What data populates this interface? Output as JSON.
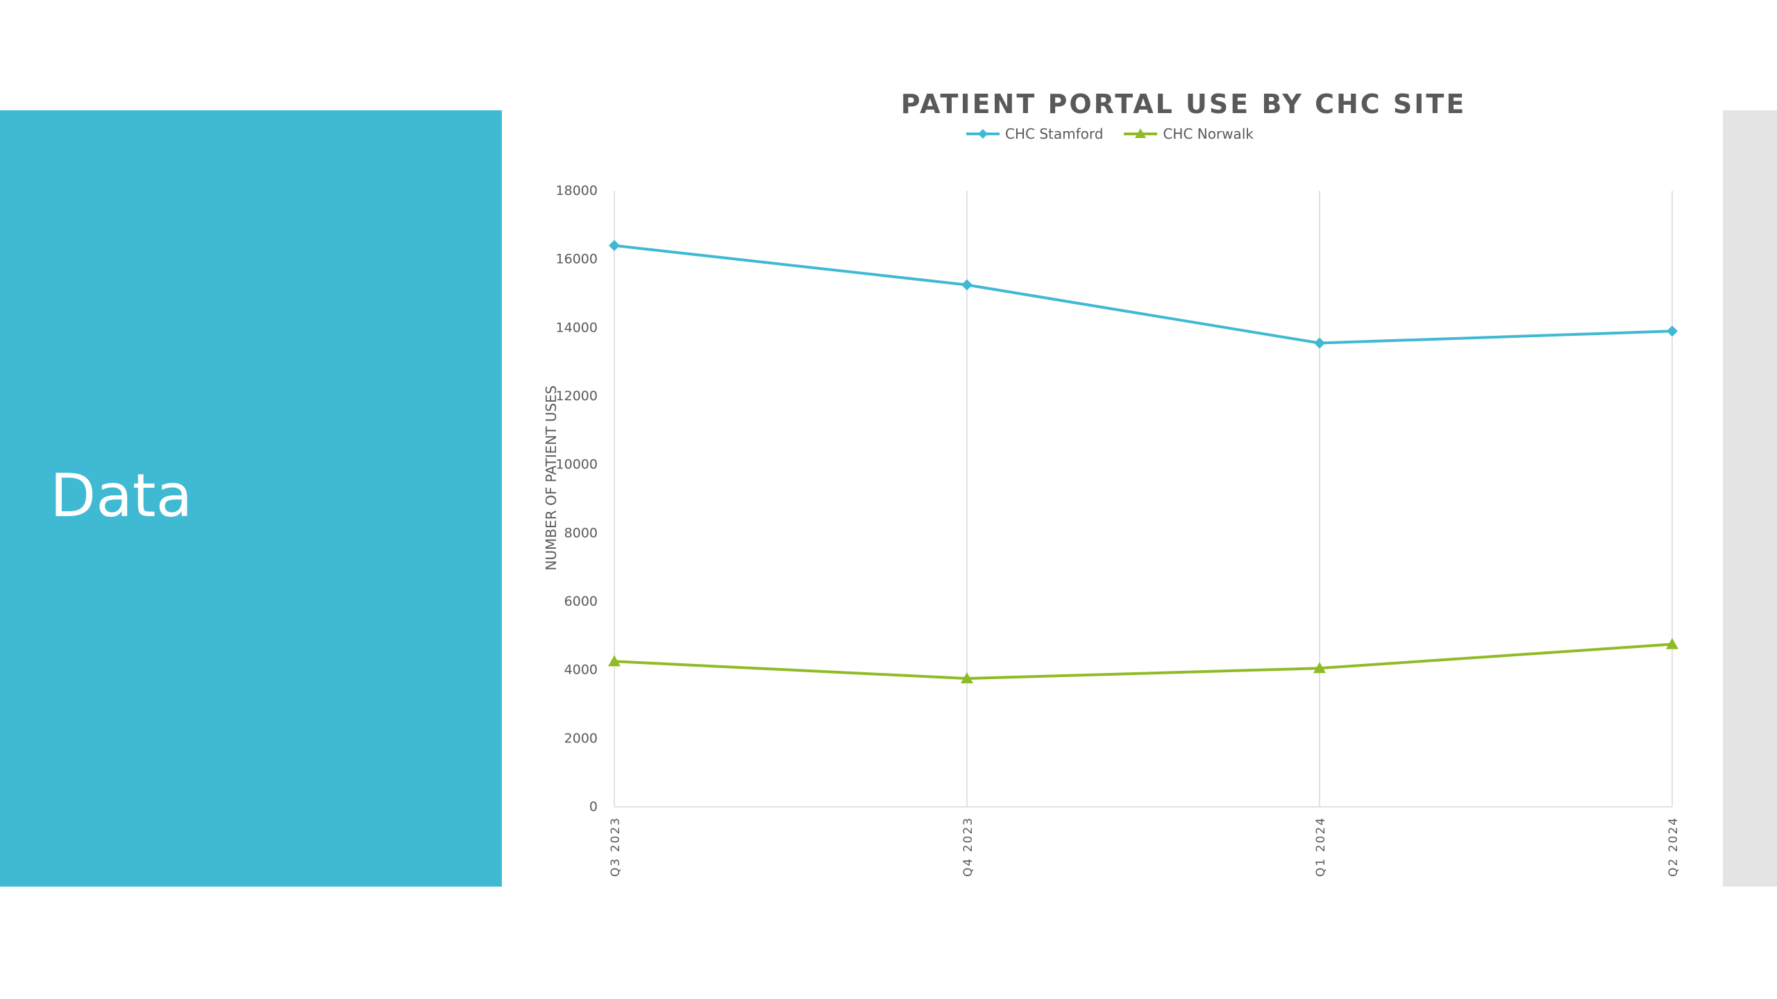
{
  "slide": {
    "title": "Data",
    "colors": {
      "left_panel": "#40b9d3",
      "right_panel": "#e4e4e4",
      "background": "#ffffff"
    }
  },
  "chart_data": {
    "type": "line",
    "title": "PATIENT PORTAL USE BY CHC SITE",
    "xlabel": "",
    "ylabel": "NUMBER OF PATIENT USES",
    "categories": [
      "Q3 2023",
      "Q4 2023",
      "Q1 2024",
      "Q2 2024"
    ],
    "ylim": [
      0,
      18000
    ],
    "yticks": [
      0,
      2000,
      4000,
      6000,
      8000,
      10000,
      12000,
      14000,
      16000,
      18000
    ],
    "grid": {
      "vertical": true,
      "horizontal": false
    },
    "legend_position": "top",
    "series": [
      {
        "name": "CHC Stamford",
        "values": [
          16400,
          15250,
          13550,
          13900
        ],
        "color": "#40b9d3",
        "marker": "diamond"
      },
      {
        "name": "CHC Norwalk",
        "values": [
          4250,
          3750,
          4050,
          4750
        ],
        "color": "#8fbc25",
        "marker": "triangle"
      }
    ]
  }
}
